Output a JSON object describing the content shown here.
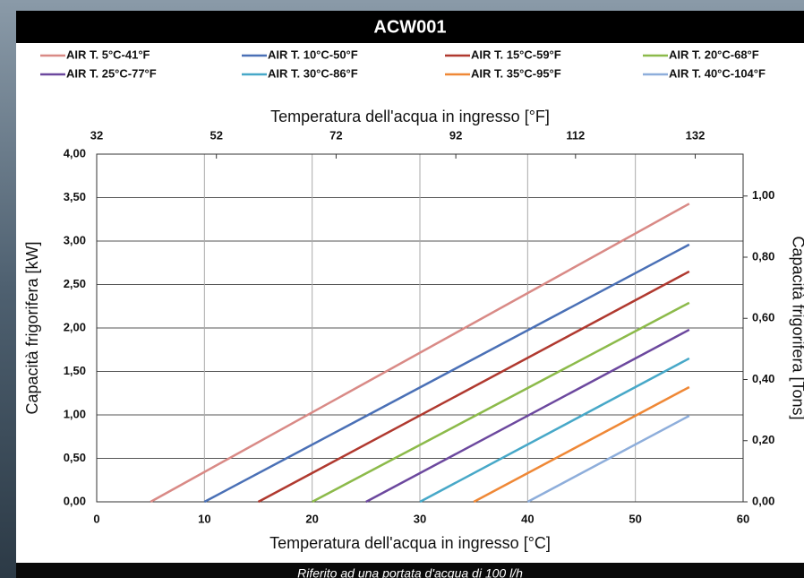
{
  "chart_data": {
    "type": "line",
    "title": "ACW001",
    "x_label": "Temperatura dell'acqua in ingresso [°C]",
    "x2_label": "Temperatura dell'acqua in ingresso [°F]",
    "y_label": "Capacità frigorifera [kW]",
    "y2_label": "Capacità frigorifera [Tons]",
    "note": "Riferito ad una portata d'acqua di 100 l/h",
    "xlim": [
      0,
      60
    ],
    "xticks": [
      0,
      10,
      20,
      30,
      40,
      50,
      60
    ],
    "x2lim": [
      32,
      140
    ],
    "x2ticks": [
      32,
      52,
      72,
      92,
      112,
      132
    ],
    "ylim": [
      0,
      4
    ],
    "yticks": [
      {
        "value": 0,
        "label": "0,00"
      },
      {
        "value": 0.5,
        "label": "0,50"
      },
      {
        "value": 1,
        "label": "1,00"
      },
      {
        "value": 1.5,
        "label": "1,50"
      },
      {
        "value": 2,
        "label": "2,00"
      },
      {
        "value": 2.5,
        "label": "2,50"
      },
      {
        "value": 3,
        "label": "3,00"
      },
      {
        "value": 3.5,
        "label": "3,50"
      },
      {
        "value": 4,
        "label": "4,00"
      }
    ],
    "y2lim": [
      0,
      1.137
    ],
    "y2ticks": [
      {
        "value": 0,
        "label": "0,00"
      },
      {
        "value": 0.2,
        "label": "0,20"
      },
      {
        "value": 0.4,
        "label": "0,40"
      },
      {
        "value": 0.6,
        "label": "0,60"
      },
      {
        "value": 0.8,
        "label": "0,80"
      },
      {
        "value": 1,
        "label": "1,00"
      }
    ],
    "grid": true,
    "series": [
      {
        "name": "AIR T. 5°C-41°F",
        "color": "#d98a86",
        "x": [
          5,
          55
        ],
        "values": [
          0,
          3.43
        ]
      },
      {
        "name": "AIR T. 10°C-50°F",
        "color": "#4a70b6",
        "x": [
          10,
          55
        ],
        "values": [
          0,
          2.96
        ]
      },
      {
        "name": "AIR T. 15°C-59°F",
        "color": "#b0392f",
        "x": [
          15,
          55
        ],
        "values": [
          0,
          2.65
        ]
      },
      {
        "name": "AIR T. 20°C-68°F",
        "color": "#8cba4a",
        "x": [
          20,
          55
        ],
        "values": [
          0,
          2.29
        ]
      },
      {
        "name": "AIR T. 25°C-77°F",
        "color": "#6c489e",
        "x": [
          25,
          55
        ],
        "values": [
          0,
          1.98
        ]
      },
      {
        "name": "AIR T. 30°C-86°F",
        "color": "#47a8c8",
        "x": [
          30,
          55
        ],
        "values": [
          0,
          1.65
        ]
      },
      {
        "name": "AIR T. 35°C-95°F",
        "color": "#ef8836",
        "x": [
          35,
          55
        ],
        "values": [
          0,
          1.32
        ]
      },
      {
        "name": "AIR T. 40°C-104°F",
        "color": "#8eaedb",
        "x": [
          40,
          55
        ],
        "values": [
          0,
          0.99
        ]
      }
    ]
  }
}
